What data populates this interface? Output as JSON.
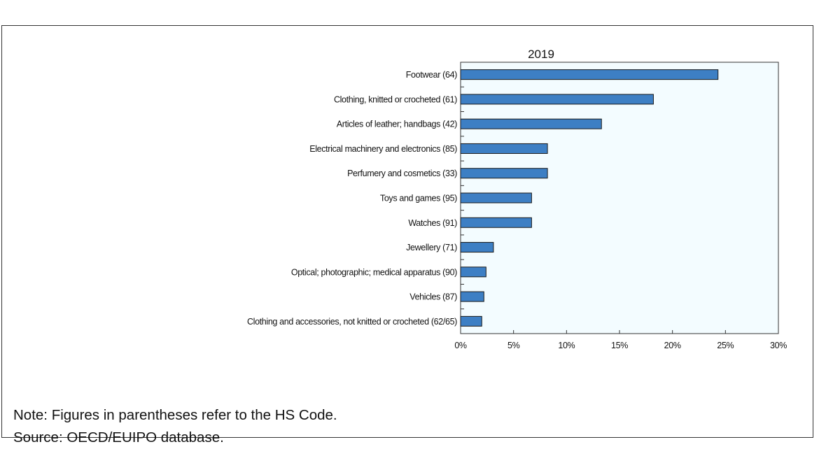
{
  "chart_data": {
    "type": "bar",
    "orientation": "horizontal",
    "title": "2019",
    "categories": [
      "Footwear (64)",
      "Clothing, knitted or crocheted (61)",
      "Articles of leather; handbags (42)",
      "Electrical machinery and electronics (85)",
      "Perfumery and cosmetics (33)",
      "Toys and games (95)",
      "Watches (91)",
      "Jewellery (71)",
      "Optical; photographic; medical apparatus (90)",
      "Vehicles (87)",
      "Clothing and accessories, not knitted or crocheted (62/65)"
    ],
    "values": [
      24.3,
      18.2,
      13.3,
      8.2,
      8.2,
      6.7,
      6.7,
      3.1,
      2.4,
      2.2,
      2.0
    ],
    "xlim": [
      0,
      30
    ],
    "xticks": [
      "0%",
      "5%",
      "10%",
      "15%",
      "20%",
      "25%",
      "30%"
    ],
    "xlabel": "",
    "ylabel": "",
    "grid": false,
    "colors": {
      "bar": "#3d7fc4",
      "bar_edge": "#1a1a1a",
      "plot_bg": "#f3fcff"
    }
  },
  "notes": {
    "note": "Note: Figures in parentheses refer to the HS Code.",
    "source": "Source: OECD/EUIPO database."
  }
}
